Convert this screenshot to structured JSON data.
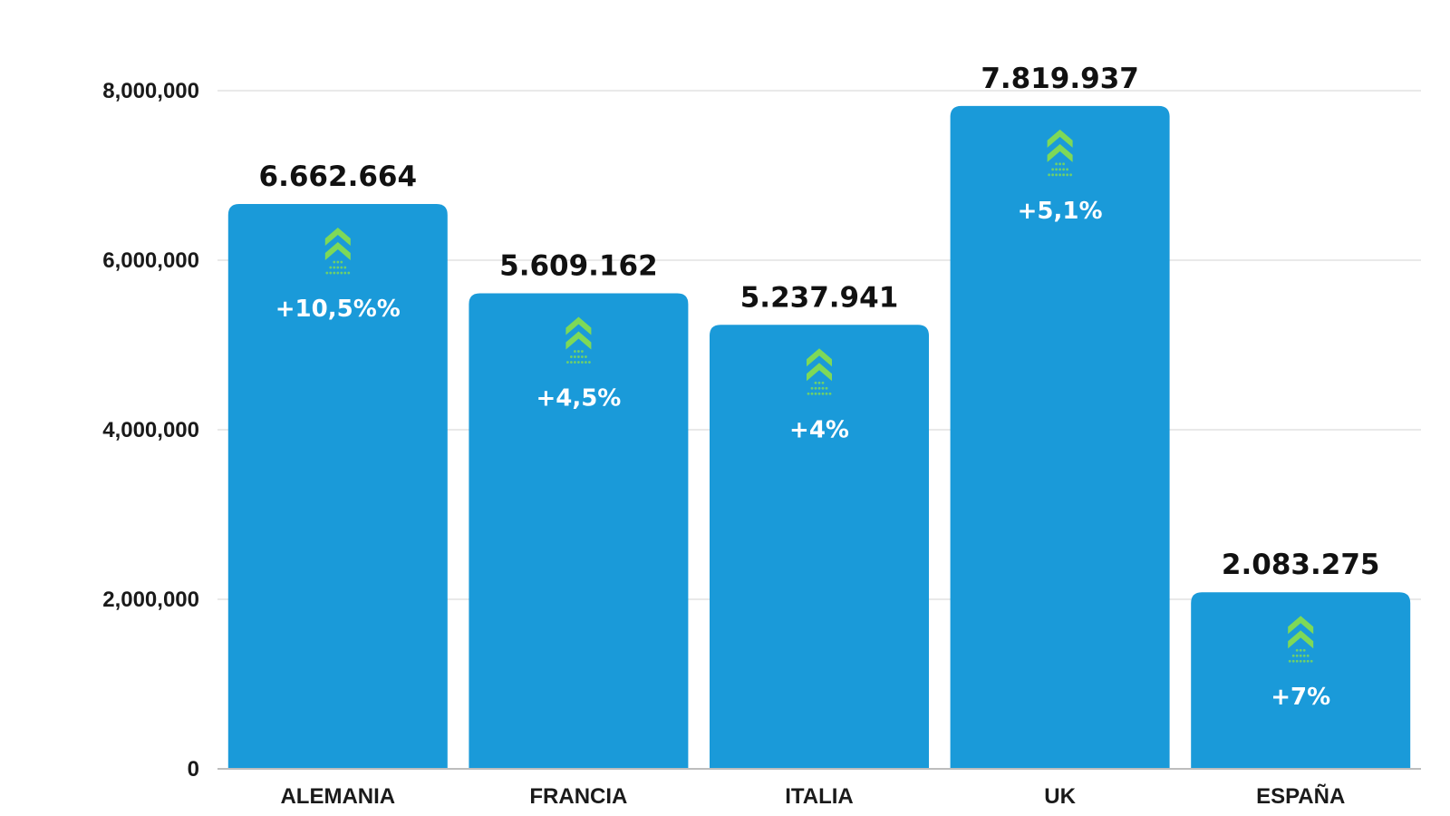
{
  "chart_data": {
    "type": "bar",
    "categories": [
      "ALEMANIA",
      "FRANCIA",
      "ITALIA",
      "UK",
      "ESPAÑA"
    ],
    "values": [
      6662664,
      5609162,
      5237941,
      7819937,
      2083275
    ],
    "value_labels": [
      "6.662.664",
      "5.609.162",
      "5.237.941",
      "7.819.937",
      "2.083.275"
    ],
    "change_labels": [
      "+10,5%%",
      "+4,5%",
      "+4%",
      "+5,1%",
      "+7%"
    ],
    "change_icon": "double-chevron-up-icon",
    "yticks": [
      0,
      2000000,
      4000000,
      6000000,
      8000000
    ],
    "ytick_labels": [
      "0",
      "2,000,000",
      "4,000,000",
      "6,000,000",
      "8,000,000"
    ],
    "ylim": [
      0,
      8000000
    ],
    "title": "",
    "xlabel": "",
    "ylabel": "",
    "grid": true,
    "legend": "none",
    "colors": {
      "bar": "#1a9ad9",
      "arrow": "#7ed957",
      "grid": "#e2e2e2",
      "baseline": "#bdbdbd"
    }
  }
}
